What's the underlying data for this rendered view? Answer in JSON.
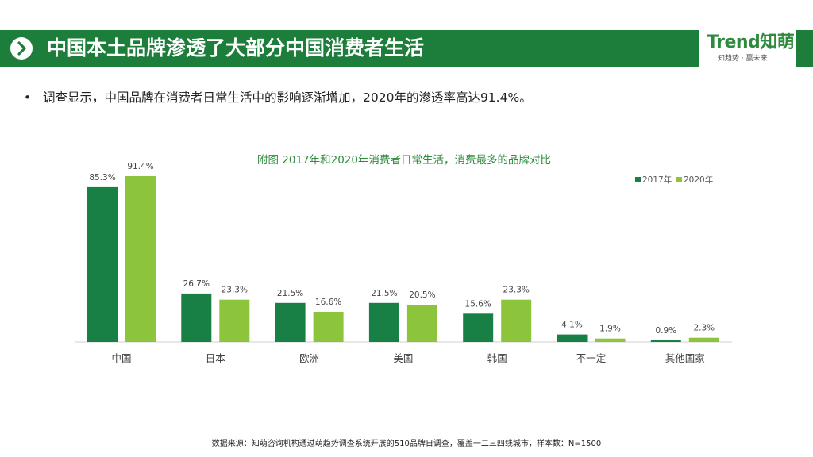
{
  "header": {
    "title": "中国本土品牌渗透了大部分中国消费者生活",
    "logo_text": "Trend知萌",
    "logo_tagline": "知趋势 · 赢未来"
  },
  "summary": {
    "bullet": "调查显示，中国品牌在消费者日常生活中的影响逐渐增加，2020年的渗透率高达91.4%。"
  },
  "chart_data": {
    "type": "bar",
    "title": "附图  2017年和2020年消费者日常生活，消费最多的品牌对比",
    "categories": [
      "中国",
      "日本",
      "欧洲",
      "美国",
      "韩国",
      "不一定",
      "其他国家"
    ],
    "series": [
      {
        "name": "2017年",
        "values": [
          85.3,
          26.7,
          21.5,
          21.5,
          15.6,
          4.1,
          0.9
        ],
        "color": "#187f45"
      },
      {
        "name": "2020年",
        "values": [
          91.4,
          23.3,
          16.6,
          20.5,
          23.3,
          1.9,
          2.3
        ],
        "color": "#8cc43c"
      }
    ],
    "value_suffix": "%",
    "ylim": [
      0,
      91.4
    ],
    "xlabel": "",
    "ylabel": "",
    "grid": false,
    "legend": "top-right"
  },
  "footer": {
    "source": "数据来源：知萌咨询机构通过萌趋势调查系统开展的510品牌日调查，覆盖一二三四线城市，样本数：N=1500"
  },
  "colors": {
    "header_green": "#1d7e3c",
    "series_2017": "#187f45",
    "series_2020": "#8cc43c"
  }
}
